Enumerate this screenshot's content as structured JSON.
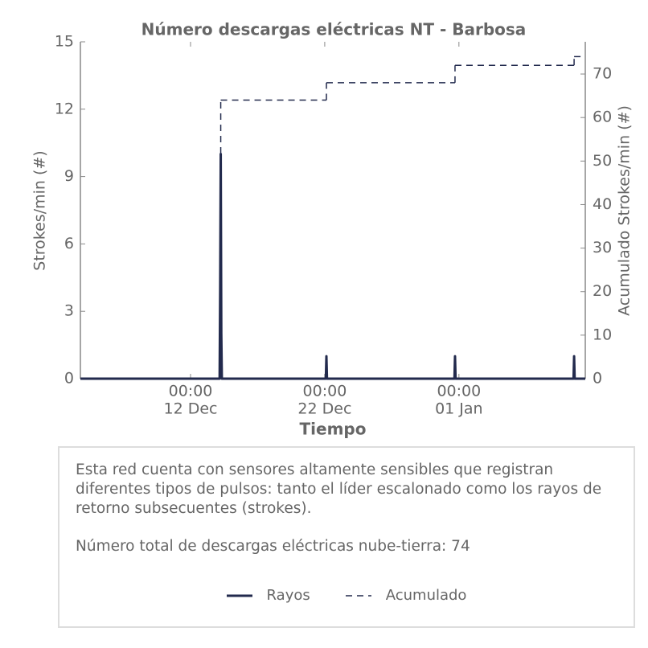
{
  "chart_data": {
    "type": "line",
    "title": "Número descargas eléctricas NT - Barbosa",
    "xlabel": "Tiempo",
    "ylabel": "Strokes/min (#)",
    "y2label": "Acumulado Strokes/min (#)",
    "xlim": [
      "12-03 19:00",
      "01-10 10:00"
    ],
    "xticks": [
      {
        "value": "12-12 00:00",
        "label": [
          "00:00",
          "12 Dec"
        ]
      },
      {
        "value": "12-22 00:00",
        "label": [
          "00:00",
          "22 Dec"
        ]
      },
      {
        "value": "01-01 00:00",
        "label": [
          "00:00",
          "01 Jan"
        ]
      }
    ],
    "ylim": [
      0,
      15
    ],
    "yticks": [
      0,
      3,
      6,
      9,
      12,
      15
    ],
    "y2lim": [
      0,
      77.4
    ],
    "y2ticks": [
      0,
      10,
      20,
      30,
      40,
      50,
      60,
      70
    ],
    "grid": false,
    "series": [
      {
        "name": "Rayos",
        "color": "#222a4d",
        "style": "solid",
        "x": [
          "12-03 19:00",
          "12-14 04:00",
          "12-14 05:00",
          "12-14 06:00",
          "12-14 07:00",
          "12-14 08:00",
          "12-22 02:00",
          "12-22 03:00",
          "12-22 04:00",
          "12-31 16:00",
          "12-31 17:00",
          "12-31 18:00",
          "01-09 13:00",
          "01-09 14:00",
          "01-09 15:00",
          "01-10 10:00"
        ],
        "values": [
          0,
          0,
          4,
          10,
          2,
          0,
          0,
          1,
          0,
          0,
          1,
          0,
          0,
          1,
          0,
          0
        ]
      },
      {
        "name": "Acumulado",
        "color": "#222a4d",
        "style": "dashed-steps",
        "axis": "y2",
        "x": [
          "12-03 19:00",
          "12-14 06:00",
          "12-22 03:00",
          "12-31 17:00",
          "01-09 14:00"
        ],
        "values": [
          0,
          64,
          68,
          72,
          74
        ]
      }
    ]
  },
  "info_box": {
    "paragraphs": [
      "Esta red cuenta con sensores altamente sensibles que registran diferentes tipos de pulsos: tanto el líder escalonado como los rayos de retorno subsecuentes (strokes).",
      "Número total de descargas eléctricas nube-tierra: 74"
    ]
  }
}
